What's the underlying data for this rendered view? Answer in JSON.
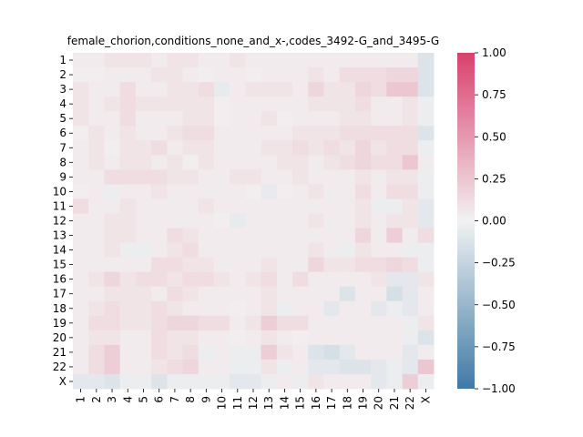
{
  "chart_data": {
    "type": "heatmap",
    "title": "female_chorion,conditions_none_and_x-,codes_3492-G_and_3495-G",
    "xlabel": "",
    "ylabel": "",
    "row_labels": [
      "1",
      "2",
      "3",
      "4",
      "5",
      "6",
      "7",
      "8",
      "9",
      "10",
      "11",
      "12",
      "13",
      "14",
      "15",
      "16",
      "17",
      "18",
      "19",
      "20",
      "21",
      "22",
      "X"
    ],
    "col_labels": [
      "1",
      "2",
      "3",
      "4",
      "5",
      "6",
      "7",
      "8",
      "9",
      "10",
      "11",
      "12",
      "13",
      "14",
      "15",
      "16",
      "17",
      "18",
      "19",
      "20",
      "21",
      "22",
      "X"
    ],
    "values": [
      [
        0.04,
        0.04,
        0.08,
        0.08,
        0.08,
        0.04,
        0.08,
        0.08,
        0.04,
        0.04,
        0.08,
        0.04,
        0.04,
        0.04,
        0.04,
        0.04,
        0.04,
        0.04,
        0.04,
        0.04,
        0.04,
        0.04,
        -0.12
      ],
      [
        0.02,
        0.02,
        0.04,
        0.04,
        0.04,
        0.08,
        0.08,
        0.04,
        0.02,
        0.04,
        0.04,
        0.02,
        0.04,
        0.04,
        0.04,
        0.08,
        0.04,
        0.12,
        0.12,
        0.12,
        0.16,
        0.16,
        -0.12
      ],
      [
        0.08,
        0.04,
        0.04,
        0.12,
        0.04,
        0.04,
        0.08,
        0.08,
        0.12,
        -0.06,
        0.04,
        0.08,
        0.08,
        0.08,
        0.04,
        0.16,
        0.08,
        0.08,
        0.16,
        0.12,
        0.24,
        0.24,
        -0.12
      ],
      [
        0.08,
        0.04,
        0.08,
        0.12,
        0.08,
        0.08,
        0.08,
        0.08,
        0.08,
        0.02,
        0.04,
        0.04,
        0.04,
        0.04,
        0.04,
        0.08,
        0.08,
        0.08,
        0.12,
        0.04,
        0.04,
        0.08,
        -0.04
      ],
      [
        0.08,
        0.04,
        0.04,
        0.12,
        0.04,
        0.04,
        0.04,
        0.08,
        0.08,
        0.02,
        0.04,
        0.04,
        0.08,
        0.02,
        0.04,
        0.04,
        0.04,
        0.08,
        0.08,
        0.04,
        0.04,
        0.08,
        -0.04
      ],
      [
        0.02,
        0.08,
        0.04,
        0.08,
        0.04,
        0.04,
        0.08,
        0.12,
        0.12,
        0.04,
        0.04,
        0.04,
        0.04,
        0.04,
        0.08,
        0.08,
        0.08,
        0.12,
        0.12,
        0.12,
        0.12,
        0.12,
        -0.12
      ],
      [
        0.04,
        0.08,
        0.02,
        0.08,
        0.08,
        0.12,
        0.04,
        0.08,
        0.08,
        0.04,
        0.04,
        0.04,
        0.08,
        0.08,
        0.12,
        0.08,
        0.12,
        0.08,
        0.16,
        0.08,
        0.12,
        0.12,
        -0.04
      ],
      [
        0.04,
        0.08,
        0.04,
        0.08,
        0.08,
        0.04,
        0.08,
        0.02,
        0.08,
        0.04,
        0.04,
        0.04,
        0.04,
        0.08,
        0.08,
        0.04,
        0.08,
        0.12,
        0.16,
        0.12,
        0.12,
        0.24,
        0.04
      ],
      [
        0.04,
        0.04,
        0.12,
        0.12,
        0.12,
        0.12,
        0.08,
        0.08,
        0.04,
        0.04,
        0.08,
        0.08,
        0.04,
        0.04,
        0.08,
        0.04,
        0.04,
        0.04,
        0.08,
        0.04,
        0.08,
        0.08,
        -0.04
      ],
      [
        0.02,
        0.04,
        -0.04,
        0.04,
        0.04,
        0.08,
        0.04,
        0.04,
        0.04,
        0.04,
        0.04,
        0.02,
        -0.06,
        0.02,
        0.04,
        0.08,
        0.04,
        0.04,
        0.12,
        0.04,
        0.12,
        0.12,
        -0.04
      ],
      [
        0.12,
        0.04,
        0.04,
        0.08,
        0.04,
        0.04,
        0.04,
        0.04,
        0.08,
        0.04,
        0.04,
        0.04,
        0.04,
        0.04,
        0.04,
        0.04,
        0.04,
        0.04,
        0.08,
        -0.04,
        -0.04,
        0.08,
        -0.08
      ],
      [
        0.04,
        0.04,
        0.08,
        0.08,
        0.04,
        0.04,
        0.04,
        0.04,
        0.04,
        0.02,
        -0.06,
        0.04,
        0.04,
        0.04,
        0.04,
        0.08,
        0.04,
        0.04,
        0.08,
        0.04,
        0.08,
        0.08,
        -0.08
      ],
      [
        0.04,
        0.04,
        0.08,
        0.08,
        0.04,
        0.04,
        0.12,
        0.08,
        0.04,
        0.04,
        0.04,
        0.04,
        0.04,
        0.04,
        0.04,
        0.04,
        0.04,
        0.04,
        0.16,
        0.04,
        0.2,
        0.04,
        0.12
      ],
      [
        0.04,
        0.04,
        0.08,
        -0.04,
        -0.04,
        0.04,
        0.08,
        0.12,
        0.04,
        0.04,
        0.04,
        0.04,
        0.04,
        0.04,
        0.04,
        0.08,
        0.04,
        -0.04,
        0.08,
        0.04,
        0.04,
        -0.04,
        -0.04
      ],
      [
        0.04,
        0.04,
        0.04,
        0.04,
        0.04,
        0.12,
        0.12,
        0.08,
        0.08,
        0.04,
        0.04,
        0.04,
        0.08,
        0.04,
        0.04,
        0.16,
        0.08,
        0.08,
        0.12,
        0.12,
        0.16,
        0.12,
        -0.04
      ],
      [
        0.04,
        0.08,
        0.16,
        0.08,
        0.12,
        0.12,
        0.08,
        0.12,
        0.12,
        0.08,
        0.04,
        0.08,
        0.12,
        0.04,
        0.12,
        0.04,
        0.04,
        0.04,
        0.04,
        0.08,
        -0.08,
        -0.08,
        0.08
      ],
      [
        0.04,
        0.04,
        0.08,
        0.08,
        0.08,
        0.04,
        0.12,
        0.08,
        0.04,
        0.04,
        0.04,
        0.04,
        0.08,
        0.04,
        0.04,
        0.04,
        0.04,
        -0.12,
        0.04,
        0.04,
        -0.16,
        -0.08,
        0.04
      ],
      [
        0.04,
        0.08,
        0.12,
        0.08,
        0.08,
        0.12,
        0.08,
        0.04,
        0.04,
        0.04,
        0.02,
        0.04,
        0.08,
        -0.04,
        0.04,
        0.04,
        -0.08,
        0.04,
        0.04,
        -0.08,
        -0.04,
        -0.08,
        0.04
      ],
      [
        0.04,
        0.12,
        0.12,
        0.08,
        0.08,
        0.12,
        0.16,
        0.16,
        0.12,
        0.12,
        0.04,
        0.08,
        0.2,
        0.12,
        0.12,
        0.04,
        0.04,
        0.04,
        0.04,
        0.04,
        0.04,
        -0.04,
        0.08
      ],
      [
        0.04,
        0.08,
        0.08,
        0.04,
        0.04,
        0.12,
        0.08,
        0.08,
        0.04,
        0.04,
        0.02,
        0.04,
        0.08,
        0.04,
        0.02,
        0.04,
        0.04,
        0.04,
        0.04,
        0.04,
        0.04,
        -0.04,
        -0.12
      ],
      [
        0.04,
        0.12,
        0.2,
        0.04,
        0.04,
        0.12,
        0.08,
        0.12,
        -0.04,
        0.04,
        -0.04,
        -0.04,
        0.2,
        0.08,
        0.04,
        -0.12,
        -0.16,
        -0.08,
        0.04,
        0.04,
        0.04,
        -0.08,
        0.04
      ],
      [
        0.04,
        0.12,
        0.2,
        0.04,
        0.04,
        0.08,
        0.12,
        0.16,
        0.04,
        0.04,
        -0.04,
        -0.04,
        0.08,
        -0.04,
        0.04,
        -0.08,
        -0.08,
        -0.12,
        -0.12,
        -0.08,
        -0.04,
        -0.08,
        0.24
      ],
      [
        -0.08,
        -0.08,
        -0.12,
        -0.04,
        -0.04,
        -0.12,
        -0.04,
        -0.04,
        -0.04,
        -0.04,
        -0.08,
        -0.08,
        -0.04,
        0.04,
        -0.04,
        0.08,
        0.04,
        0.04,
        0.04,
        -0.08,
        -0.04,
        0.2,
        -0.04
      ]
    ],
    "colorbar": {
      "min": -1.0,
      "max": 1.0,
      "ticks": [
        1.0,
        0.75,
        0.5,
        0.25,
        0.0,
        -0.25,
        -0.5,
        -0.75,
        -1.0
      ],
      "tick_labels": [
        "1.00",
        "0.75",
        "0.50",
        "0.25",
        "0.00",
        "−0.25",
        "−0.50",
        "−0.75",
        "−1.00"
      ]
    },
    "colors": {
      "negative": "#3f7aa6",
      "center": "#f2f2f2",
      "positive": "#d9406d"
    },
    "grid": false
  }
}
